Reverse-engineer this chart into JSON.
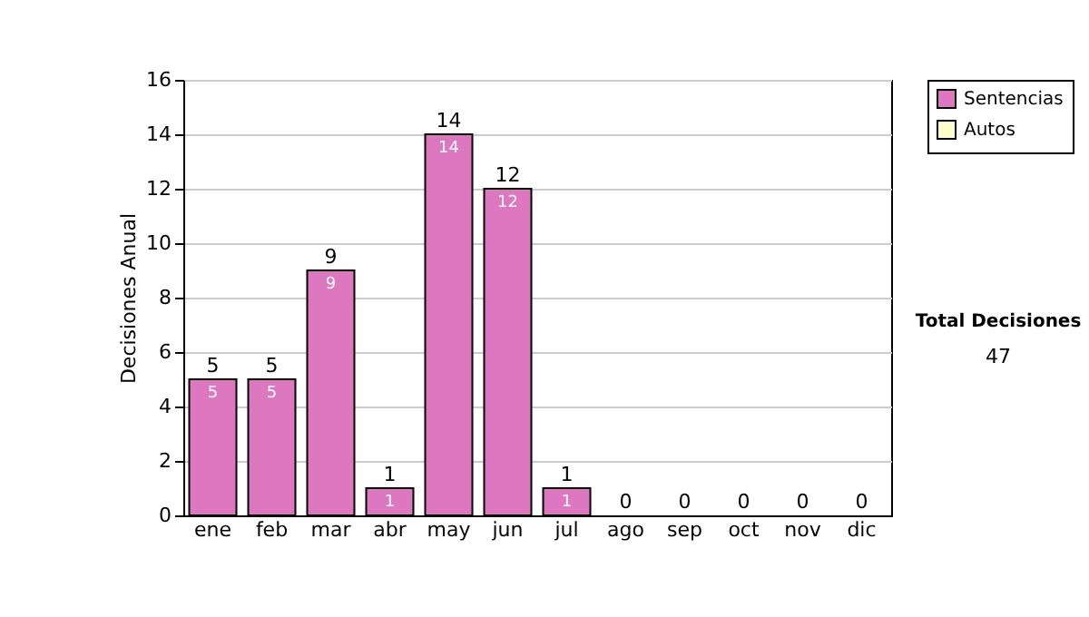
{
  "chart_data": {
    "type": "bar",
    "ylabel": "Decisiones Anual",
    "categories": [
      "ene",
      "feb",
      "mar",
      "abr",
      "may",
      "jun",
      "jul",
      "ago",
      "sep",
      "oct",
      "nov",
      "dic"
    ],
    "stacked": true,
    "series": [
      {
        "name": "Sentencias",
        "color": "#dd77c0",
        "values": [
          5,
          5,
          9,
          1,
          14,
          12,
          1,
          0,
          0,
          0,
          0,
          0
        ],
        "value_labels": [
          "5",
          "5",
          "9",
          "1",
          "14",
          "12",
          "1",
          null,
          null,
          null,
          null,
          null
        ]
      },
      {
        "name": "Autos",
        "color": "#ffffcc",
        "values": [
          0,
          0,
          0,
          0,
          0,
          0,
          0,
          0,
          0,
          0,
          0,
          0
        ]
      }
    ],
    "totals": [
      "5",
      "5",
      "9",
      "1",
      "14",
      "12",
      "1",
      "0",
      "0",
      "0",
      "0",
      "0"
    ],
    "ylim": [
      0,
      16
    ],
    "yticks": [
      0,
      2,
      4,
      6,
      8,
      10,
      12,
      14,
      16
    ],
    "grid": "y",
    "legend": "right",
    "annotations": [
      "Total Decisiones",
      "47"
    ]
  }
}
